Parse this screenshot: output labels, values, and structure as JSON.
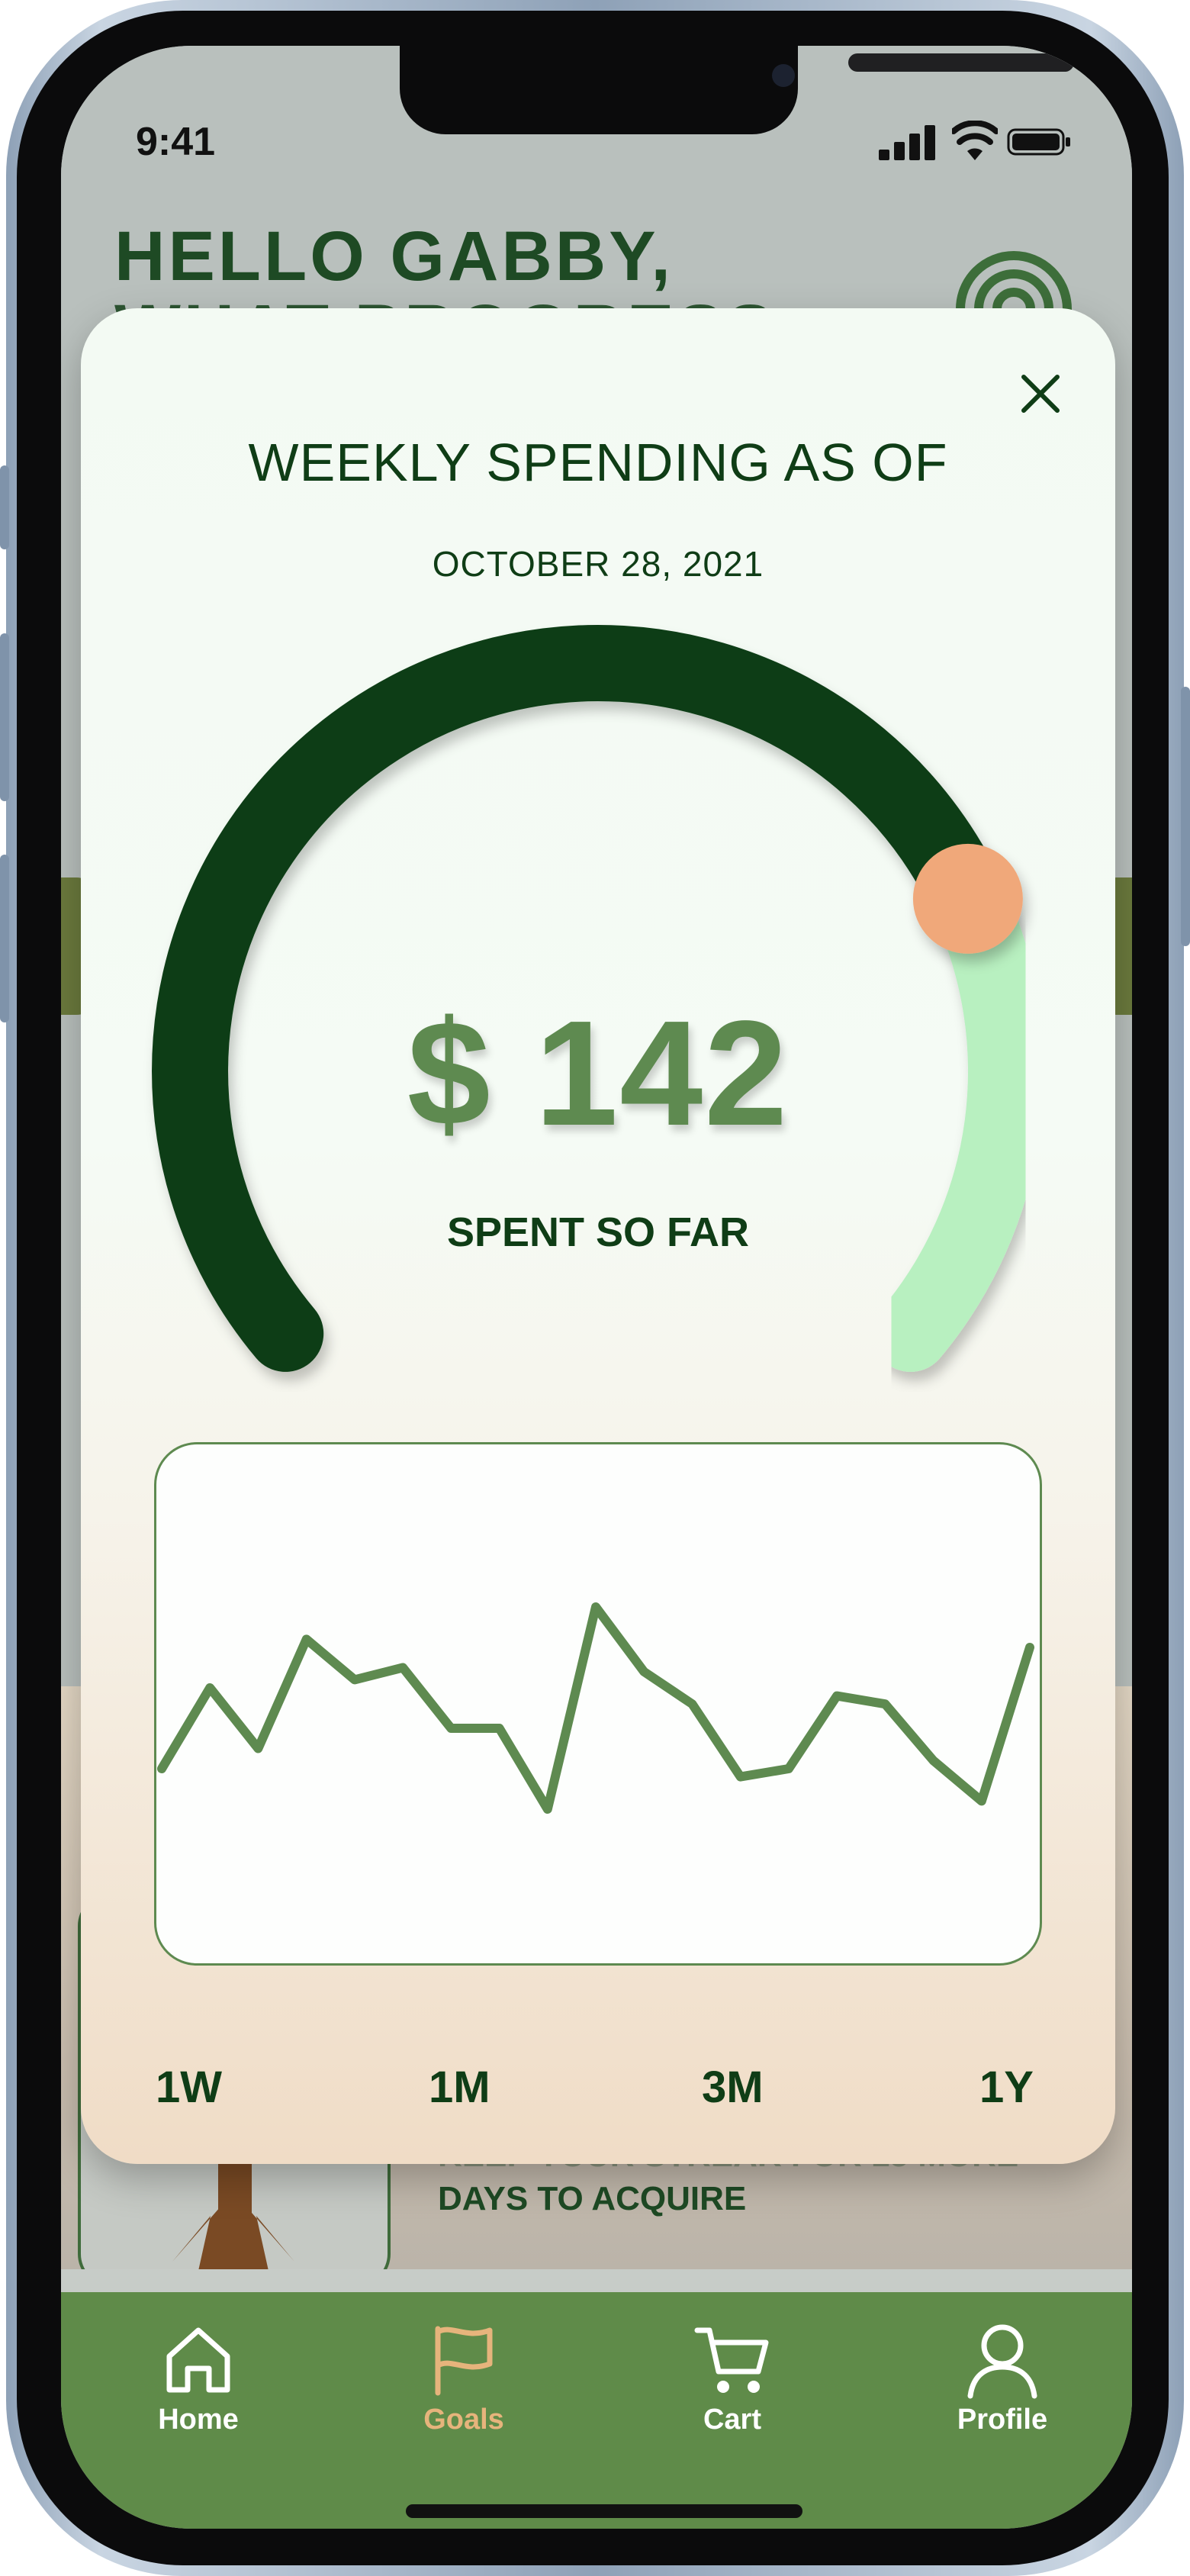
{
  "status_bar": {
    "time": "9:41"
  },
  "background_page": {
    "greeting_line1": "HELLO GABBY,",
    "greeting_line2": "WHAT PROGRESS",
    "streak_line1": "KEEP YOUR STREAK FOR 15 MORE",
    "streak_line2": "DAYS TO ACQUIRE"
  },
  "modal": {
    "title": "WEEKLY SPENDING AS OF",
    "date": "OCTOBER 28, 2021",
    "amount": "$ 142",
    "amount_caption": "SPENT SO FAR",
    "gauge_progress": 0.75,
    "ranges": [
      {
        "label": "1W"
      },
      {
        "label": "1M"
      },
      {
        "label": "3M"
      },
      {
        "label": "1Y"
      }
    ]
  },
  "chart_data": {
    "type": "line",
    "x": [
      0,
      1,
      2,
      3,
      4,
      5,
      6,
      7,
      8,
      9,
      10,
      11,
      12,
      13,
      14,
      15,
      16,
      17,
      18
    ],
    "series": [
      {
        "values": [
          40,
          60,
          45,
          72,
          62,
          65,
          50,
          50,
          30,
          80,
          64,
          56,
          38,
          40,
          58,
          56,
          42,
          32,
          70
        ]
      }
    ],
    "ylim": [
      0,
      100
    ]
  },
  "tabbar": {
    "tabs": [
      {
        "label": "Home",
        "icon": "home-icon"
      },
      {
        "label": "Goals",
        "icon": "flag-icon"
      },
      {
        "label": "Cart",
        "icon": "cart-icon"
      },
      {
        "label": "Profile",
        "icon": "profile-icon"
      }
    ],
    "active": "Goals"
  },
  "colors": {
    "dark_green": "#0f3d16",
    "mid_green": "#5e8a50",
    "light_green": "#b8f0c0",
    "peach": "#f0a87a",
    "tab_active": "#e6b47c"
  }
}
